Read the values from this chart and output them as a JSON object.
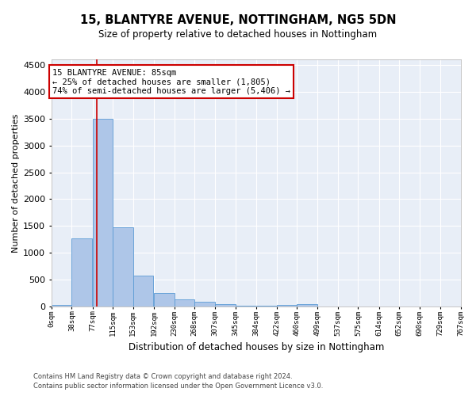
{
  "title": "15, BLANTYRE AVENUE, NOTTINGHAM, NG5 5DN",
  "subtitle": "Size of property relative to detached houses in Nottingham",
  "xlabel": "Distribution of detached houses by size in Nottingham",
  "ylabel": "Number of detached properties",
  "bar_color": "#aec6e8",
  "bar_edge_color": "#5b9bd5",
  "background_color": "#e8eef7",
  "grid_color": "#ffffff",
  "fig_background": "#ffffff",
  "red_line_x": 85,
  "bin_width": 38,
  "bin_starts": [
    0,
    38,
    77,
    115,
    153,
    192,
    230,
    268,
    307,
    345,
    384,
    422,
    460,
    499,
    537,
    575,
    614,
    652,
    690,
    729
  ],
  "bar_heights": [
    30,
    1270,
    3500,
    1480,
    580,
    250,
    140,
    90,
    50,
    25,
    15,
    40,
    50,
    0,
    0,
    0,
    0,
    0,
    0,
    0
  ],
  "tick_labels": [
    "0sqm",
    "38sqm",
    "77sqm",
    "115sqm",
    "153sqm",
    "192sqm",
    "230sqm",
    "268sqm",
    "307sqm",
    "345sqm",
    "384sqm",
    "422sqm",
    "460sqm",
    "499sqm",
    "537sqm",
    "575sqm",
    "614sqm",
    "652sqm",
    "690sqm",
    "729sqm",
    "767sqm"
  ],
  "ylim": [
    0,
    4600
  ],
  "yticks": [
    0,
    500,
    1000,
    1500,
    2000,
    2500,
    3000,
    3500,
    4000,
    4500
  ],
  "annotation_title": "15 BLANTYRE AVENUE: 85sqm",
  "annotation_line1": "← 25% of detached houses are smaller (1,805)",
  "annotation_line2": "74% of semi-detached houses are larger (5,406) →",
  "annotation_box_color": "#ffffff",
  "annotation_border_color": "#cc0000",
  "footer1": "Contains HM Land Registry data © Crown copyright and database right 2024.",
  "footer2": "Contains public sector information licensed under the Open Government Licence v3.0."
}
